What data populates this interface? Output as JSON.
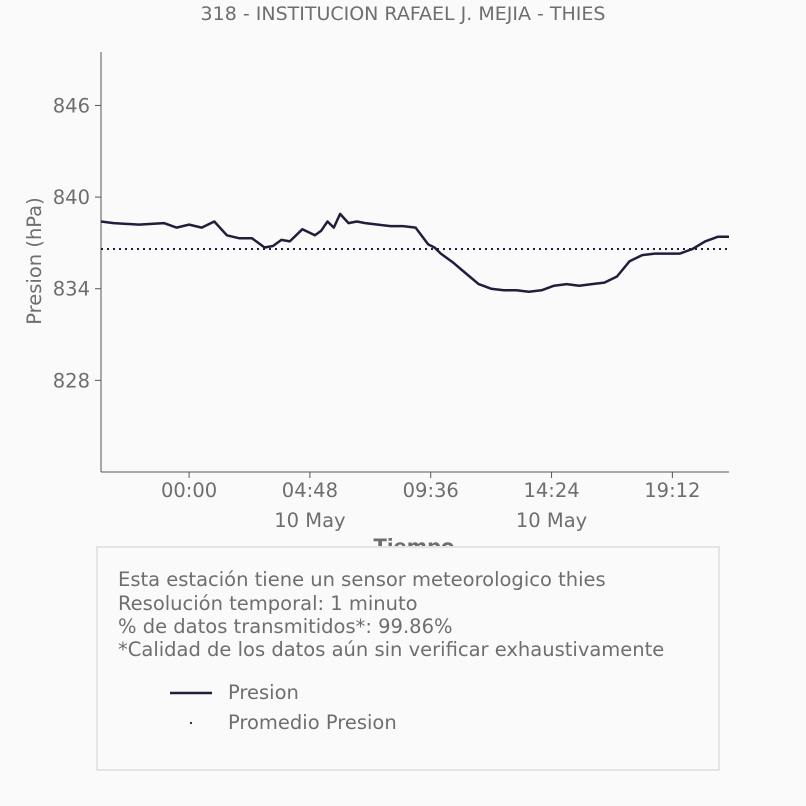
{
  "title": "318 - INSTITUCION RAFAEL J. MEJIA - THIES",
  "chart_data": {
    "type": "line",
    "title": "318 - INSTITUCION RAFAEL J. MEJIA - THIES",
    "xlabel": "Tiempo",
    "ylabel": "Presion (hPa)",
    "ylim": [
      822,
      849.5
    ],
    "xlim": [
      "2024-05-09 20:30",
      "2024-05-10 21:27"
    ],
    "yticks": [
      828,
      834,
      840,
      846
    ],
    "xticks": [
      {
        "value": "2024-05-10 00:00",
        "label": "00:00",
        "sublabel": ""
      },
      {
        "value": "2024-05-10 04:48",
        "label": "04:48",
        "sublabel": "10 May"
      },
      {
        "value": "2024-05-10 09:36",
        "label": "09:36",
        "sublabel": ""
      },
      {
        "value": "2024-05-10 14:24",
        "label": "14:24",
        "sublabel": "10 May"
      },
      {
        "value": "2024-05-10 19:12",
        "label": "19:12",
        "sublabel": ""
      }
    ],
    "grid": false,
    "series": [
      {
        "name": "Presion",
        "color": "#1f1f3d",
        "style": "solid",
        "x": [
          "2024-05-09 20:30",
          "2024-05-09 21:00",
          "2024-05-09 22:00",
          "2024-05-09 23:00",
          "2024-05-09 23:30",
          "2024-05-10 00:00",
          "2024-05-10 00:30",
          "2024-05-10 01:00",
          "2024-05-10 01:30",
          "2024-05-10 02:00",
          "2024-05-10 02:30",
          "2024-05-10 03:00",
          "2024-05-10 03:20",
          "2024-05-10 03:40",
          "2024-05-10 04:00",
          "2024-05-10 04:30",
          "2024-05-10 05:00",
          "2024-05-10 05:15",
          "2024-05-10 05:30",
          "2024-05-10 05:45",
          "2024-05-10 06:00",
          "2024-05-10 06:20",
          "2024-05-10 06:40",
          "2024-05-10 07:00",
          "2024-05-10 07:30",
          "2024-05-10 08:00",
          "2024-05-10 08:30",
          "2024-05-10 09:00",
          "2024-05-10 09:30",
          "2024-05-10 09:45",
          "2024-05-10 10:00",
          "2024-05-10 10:30",
          "2024-05-10 11:00",
          "2024-05-10 11:30",
          "2024-05-10 12:00",
          "2024-05-10 12:30",
          "2024-05-10 13:00",
          "2024-05-10 13:30",
          "2024-05-10 14:00",
          "2024-05-10 14:30",
          "2024-05-10 15:00",
          "2024-05-10 15:30",
          "2024-05-10 16:00",
          "2024-05-10 16:30",
          "2024-05-10 17:00",
          "2024-05-10 17:30",
          "2024-05-10 18:00",
          "2024-05-10 18:30",
          "2024-05-10 19:00",
          "2024-05-10 19:30",
          "2024-05-10 20:00",
          "2024-05-10 20:30",
          "2024-05-10 21:00",
          "2024-05-10 21:27"
        ],
        "values": [
          838.4,
          838.3,
          838.2,
          838.3,
          838.0,
          838.2,
          838.0,
          838.4,
          837.5,
          837.3,
          837.3,
          836.7,
          836.8,
          837.2,
          837.1,
          837.9,
          837.5,
          837.8,
          838.4,
          838.0,
          838.9,
          838.3,
          838.4,
          838.3,
          838.2,
          838.1,
          838.1,
          838.0,
          836.9,
          836.7,
          836.3,
          835.7,
          835.0,
          834.3,
          834.0,
          833.9,
          833.9,
          833.8,
          833.9,
          834.2,
          834.3,
          834.2,
          834.3,
          834.4,
          834.8,
          835.8,
          836.2,
          836.3,
          836.3,
          836.3,
          836.6,
          837.1,
          837.4,
          837.4
        ]
      },
      {
        "name": "Promedio Presion",
        "color": "#1f1f3d",
        "style": "dotted",
        "x": [
          "2024-05-09 20:30",
          "2024-05-10 21:27"
        ],
        "values": [
          836.6,
          836.6
        ]
      }
    ],
    "legend": "inside info box, below text"
  },
  "info": {
    "lines": [
      "Esta estación tiene un sensor meteorologico thies",
      "Resolución temporal: 1 minuto",
      "% de datos transmitidos*: 99.86%",
      "*Calidad de los datos aún sin verificar exhaustivamente"
    ]
  }
}
